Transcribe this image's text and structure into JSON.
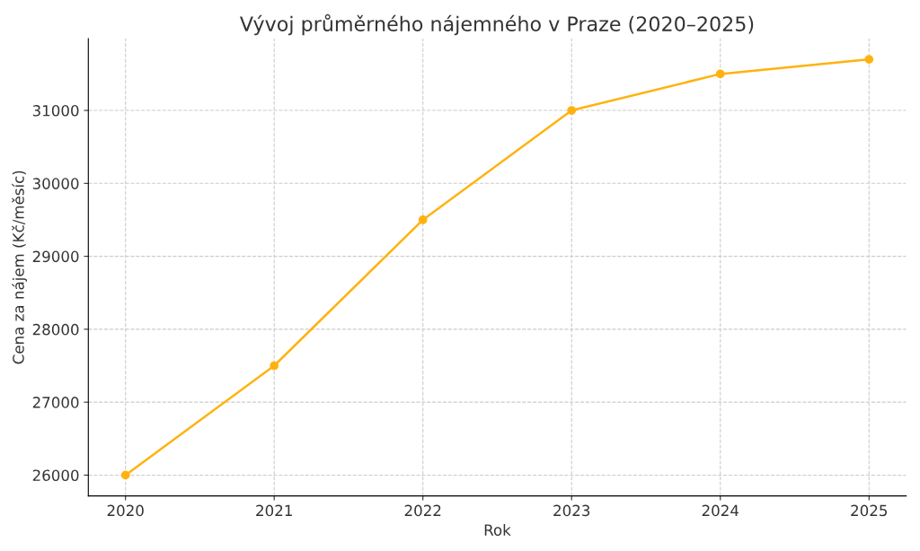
{
  "chart_data": {
    "type": "line",
    "title": "Vývoj průměrného nájemného v Praze (2020–2025)",
    "xlabel": "Rok",
    "ylabel": "Cena za nájem (Kč/měsíc)",
    "x": [
      2020,
      2021,
      2022,
      2023,
      2024,
      2025
    ],
    "series": [
      {
        "color": "#ffb20f",
        "values": [
          26000,
          27500,
          29500,
          31000,
          31500,
          31700
        ]
      }
    ],
    "xlim": [
      2019.75,
      2025.25
    ],
    "xticks": [
      2020,
      2021,
      2022,
      2023,
      2024,
      2025
    ],
    "ylim": [
      25715,
      31985
    ],
    "yticks": [
      26000,
      27000,
      28000,
      29000,
      30000,
      31000
    ],
    "grid": true,
    "marker": "circle",
    "line_style": "solid",
    "legend": false
  }
}
